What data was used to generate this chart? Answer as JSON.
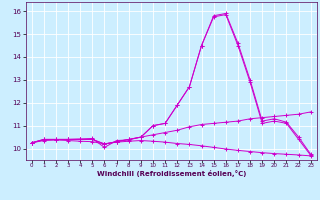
{
  "xlabel": "Windchill (Refroidissement éolien,°C)",
  "background_color": "#cceeff",
  "grid_color": "#ffffff",
  "line_color": "#cc00cc",
  "xlim": [
    -0.5,
    23.5
  ],
  "ylim": [
    9.5,
    16.4
  ],
  "yticks": [
    10,
    11,
    12,
    13,
    14,
    15,
    16
  ],
  "xticks": [
    0,
    1,
    2,
    3,
    4,
    5,
    6,
    7,
    8,
    9,
    10,
    11,
    12,
    13,
    14,
    15,
    16,
    17,
    18,
    19,
    20,
    21,
    22,
    23
  ],
  "series": {
    "line1": {
      "x": [
        0,
        1,
        2,
        3,
        4,
        5,
        6,
        7,
        8,
        9,
        10,
        11,
        12,
        13,
        14,
        15,
        16,
        17,
        18,
        19,
        20,
        21,
        22,
        23
      ],
      "y": [
        10.25,
        10.4,
        10.4,
        10.4,
        10.4,
        10.4,
        10.2,
        10.3,
        10.4,
        10.5,
        11.0,
        11.1,
        11.9,
        12.7,
        14.5,
        15.8,
        15.9,
        14.6,
        13.0,
        11.2,
        11.3,
        11.15,
        10.5,
        9.75
      ]
    },
    "line2": {
      "x": [
        0,
        1,
        2,
        3,
        4,
        5,
        6,
        7,
        8,
        9,
        10,
        11,
        12,
        13,
        14,
        15,
        16,
        17,
        18,
        19,
        20,
        21,
        22,
        23
      ],
      "y": [
        10.25,
        10.4,
        10.4,
        10.4,
        10.4,
        10.4,
        10.2,
        10.3,
        10.4,
        10.5,
        11.0,
        11.1,
        11.9,
        12.7,
        14.5,
        15.75,
        15.85,
        14.5,
        12.9,
        11.1,
        11.2,
        11.1,
        10.4,
        9.7
      ]
    },
    "line3": {
      "x": [
        0,
        1,
        2,
        3,
        4,
        5,
        6,
        7,
        8,
        9,
        10,
        11,
        12,
        13,
        14,
        15,
        16,
        17,
        18,
        19,
        20,
        21,
        22,
        23
      ],
      "y": [
        10.25,
        10.35,
        10.38,
        10.4,
        10.42,
        10.44,
        10.05,
        10.35,
        10.38,
        10.5,
        10.6,
        10.7,
        10.8,
        10.95,
        11.05,
        11.1,
        11.15,
        11.2,
        11.3,
        11.35,
        11.4,
        11.45,
        11.5,
        11.6
      ]
    },
    "line4": {
      "x": [
        0,
        1,
        2,
        3,
        4,
        5,
        6,
        7,
        8,
        9,
        10,
        11,
        12,
        13,
        14,
        15,
        16,
        17,
        18,
        19,
        20,
        21,
        22,
        23
      ],
      "y": [
        10.25,
        10.38,
        10.38,
        10.35,
        10.32,
        10.3,
        10.2,
        10.28,
        10.32,
        10.35,
        10.32,
        10.28,
        10.22,
        10.18,
        10.12,
        10.05,
        9.98,
        9.92,
        9.87,
        9.82,
        9.78,
        9.75,
        9.72,
        9.68
      ]
    }
  }
}
